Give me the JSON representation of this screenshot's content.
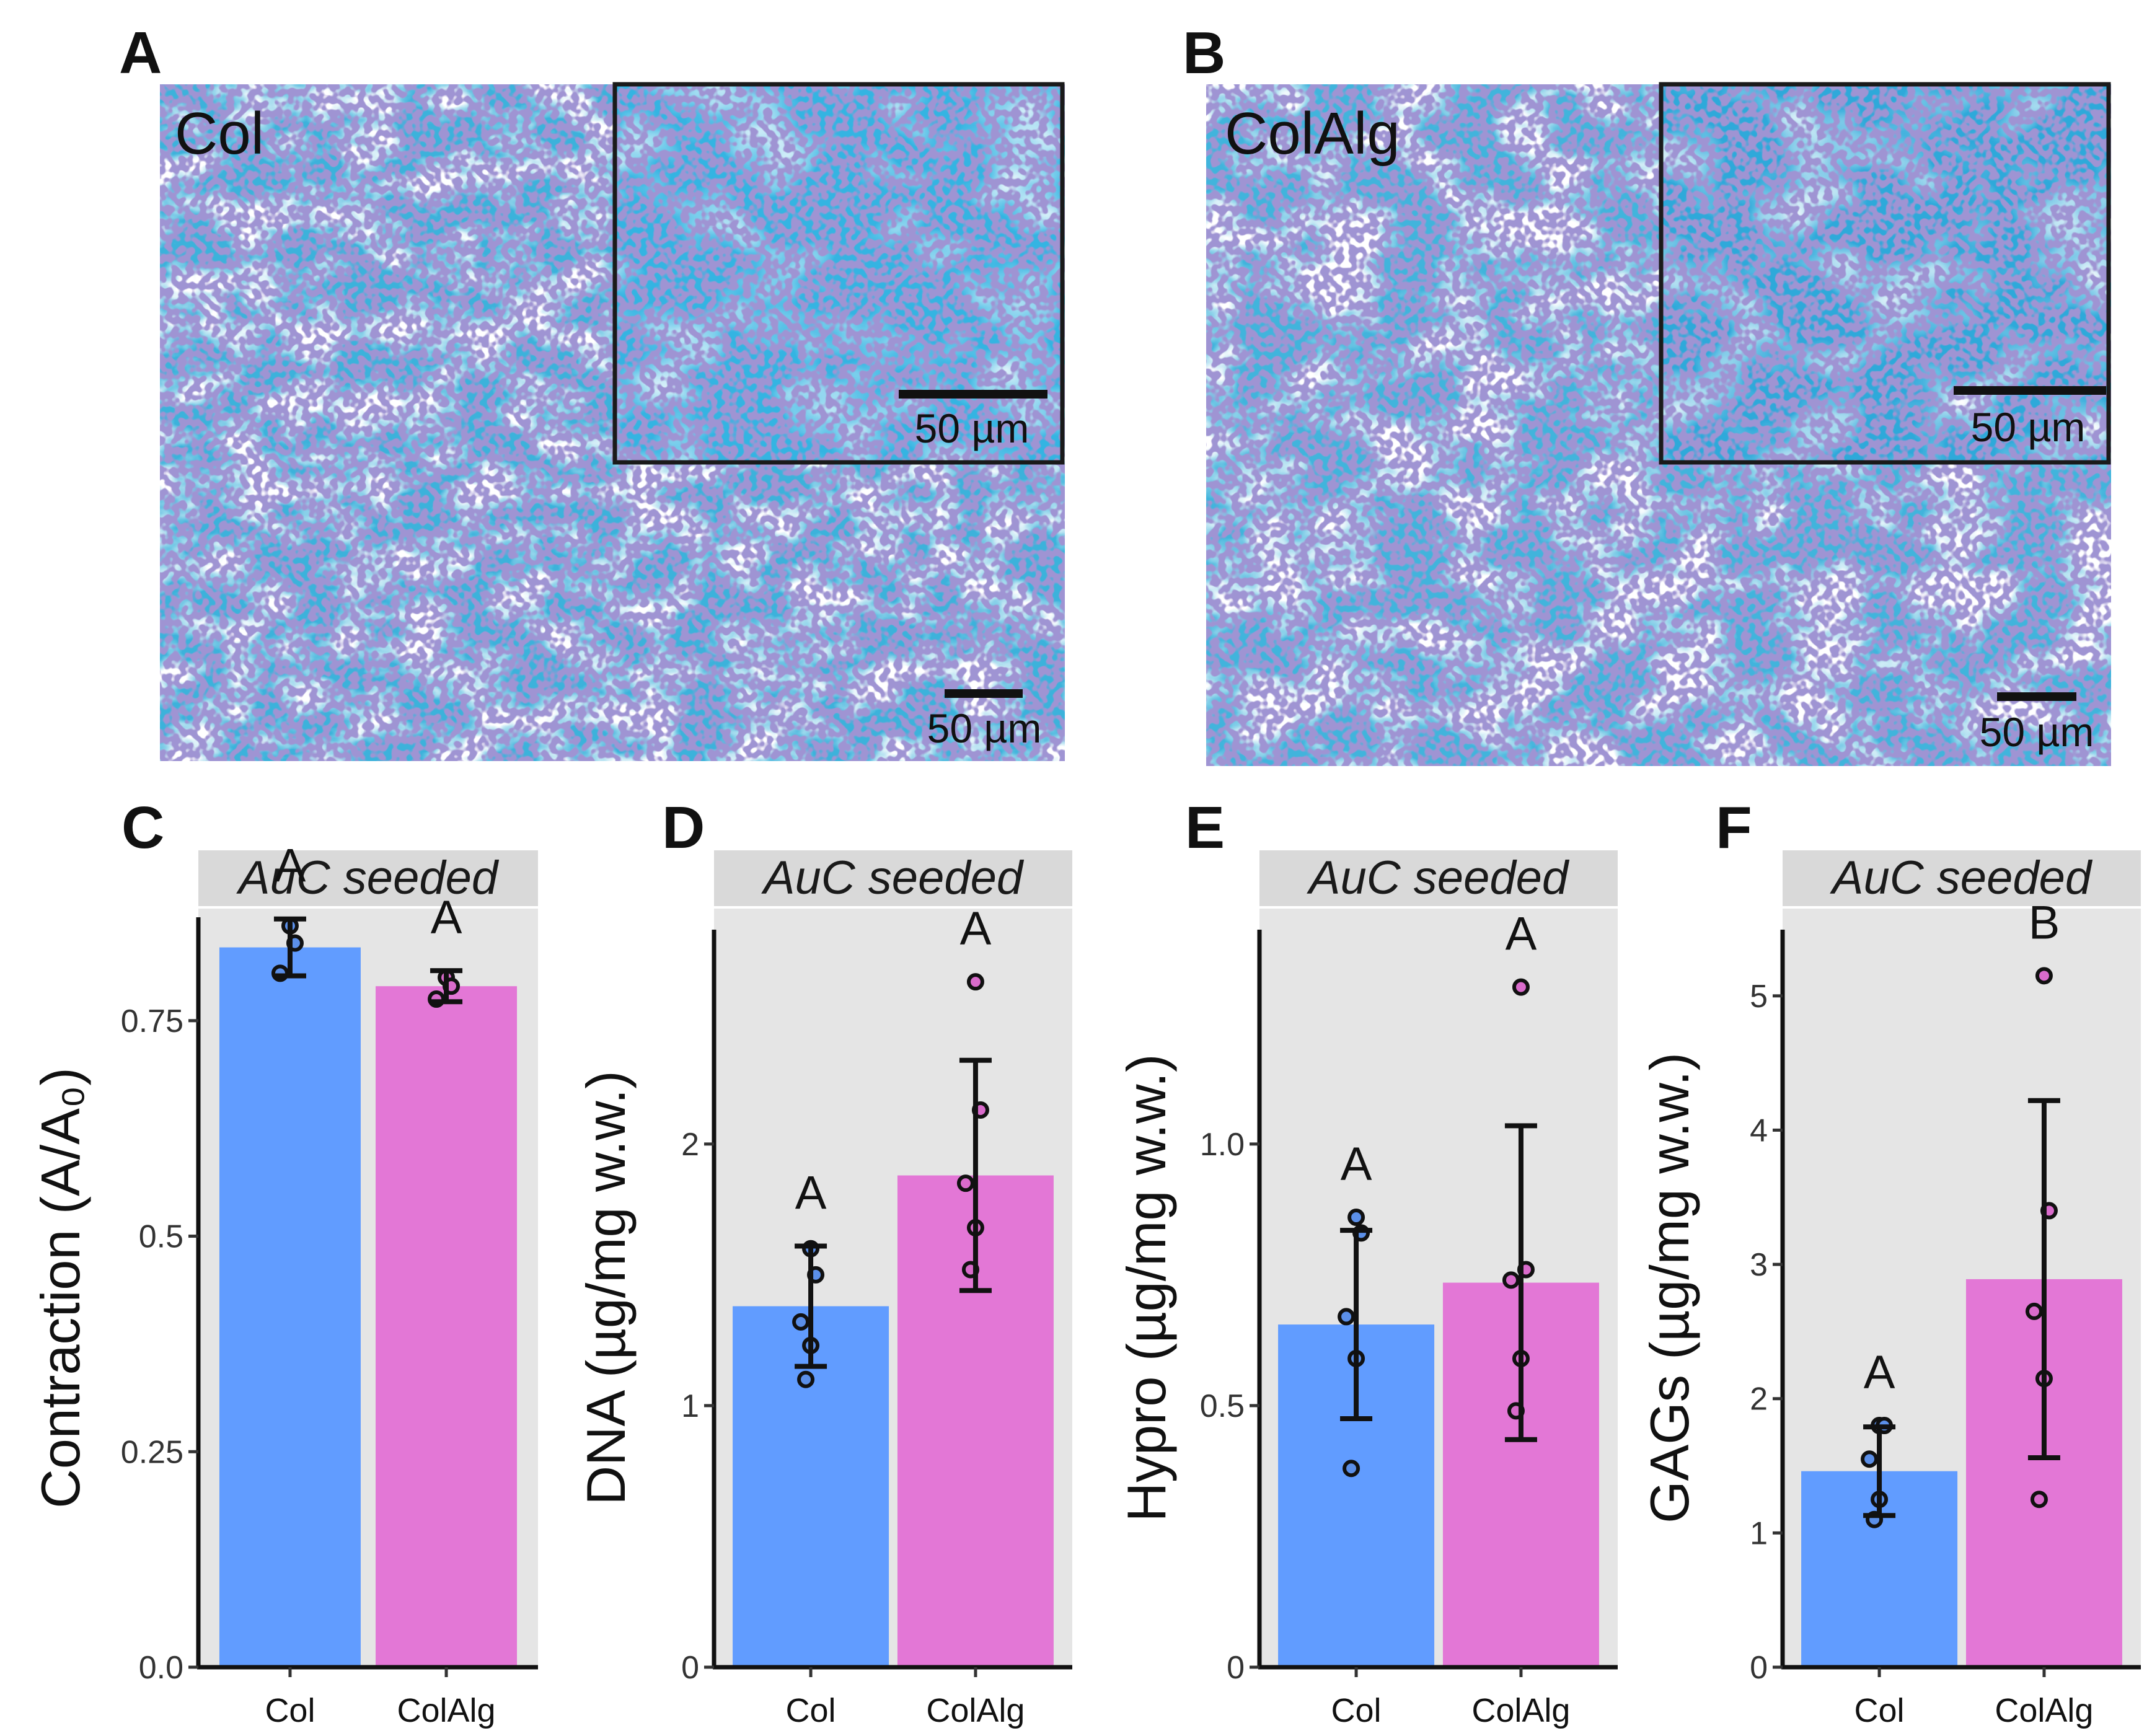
{
  "micrographs": [
    {
      "panel": "A",
      "label": "Col",
      "scale_inset": "50 µm",
      "scale_main": "50 µm"
    },
    {
      "panel": "B",
      "label": "ColAlg",
      "scale_inset": "50 µm",
      "scale_main": "50 µm"
    }
  ],
  "colors": {
    "col_bar": "#619CFF",
    "colalg_bar": "#E377D6",
    "col_point": "#5B8FE8",
    "colalg_point": "#D96BCB",
    "panel_bg": "#E5E5E5",
    "tissue": "#3FB3DC"
  },
  "chart_data": [
    {
      "panel": "C",
      "type": "bar",
      "strip": "AuC seeded",
      "ylabel": "Contraction (A/A₀)",
      "ylim": [
        0,
        0.88
      ],
      "yticks": [
        0,
        0.25,
        0.5,
        0.75
      ],
      "ytick_labels": [
        "0.0",
        "0.25",
        "0.5",
        "0.75"
      ],
      "categories": [
        "Col",
        "ColAlg"
      ],
      "values": [
        0.835,
        0.79
      ],
      "sd": [
        0.033,
        0.018
      ],
      "points": [
        [
          0.86,
          0.84,
          0.805
        ],
        [
          0.8,
          0.79,
          0.775
        ]
      ],
      "sig": [
        "A",
        "A"
      ]
    },
    {
      "panel": "D",
      "type": "bar",
      "strip": "AuC seeded",
      "ylabel": "DNA (µg/mg w.w.)",
      "ylim": [
        0,
        2.9
      ],
      "yticks": [
        0,
        1,
        2
      ],
      "ytick_labels": [
        "0",
        "1",
        "2"
      ],
      "categories": [
        "Col",
        "ColAlg"
      ],
      "values": [
        1.38,
        1.88
      ],
      "sd": [
        0.23,
        0.44
      ],
      "points": [
        [
          1.6,
          1.5,
          1.32,
          1.23,
          1.1
        ],
        [
          2.62,
          2.13,
          1.85,
          1.68,
          1.52
        ]
      ],
      "sig": [
        "A",
        "A"
      ]
    },
    {
      "panel": "E",
      "type": "bar",
      "strip": "AuC seeded",
      "ylabel": "Hypro (µg/mg w.w.)",
      "ylim": [
        0,
        1.45
      ],
      "yticks": [
        0,
        0.5,
        1.0
      ],
      "ytick_labels": [
        "0",
        "0.5",
        "1.0"
      ],
      "categories": [
        "Col",
        "ColAlg"
      ],
      "values": [
        0.655,
        0.735
      ],
      "sd": [
        0.18,
        0.3
      ],
      "points": [
        [
          0.86,
          0.83,
          0.67,
          0.59,
          0.38
        ],
        [
          1.3,
          0.76,
          0.74,
          0.59,
          0.49
        ]
      ],
      "sig": [
        "A",
        "A"
      ]
    },
    {
      "panel": "F",
      "type": "bar",
      "strip": "AuC seeded",
      "ylabel": "GAGs (µg/mg w.w.)",
      "ylim": [
        0,
        5.65
      ],
      "yticks": [
        0,
        1,
        2,
        3,
        4,
        5
      ],
      "ytick_labels": [
        "0",
        "1",
        "2",
        "3",
        "4",
        "5"
      ],
      "categories": [
        "Col",
        "ColAlg"
      ],
      "values": [
        1.46,
        2.89
      ],
      "sd": [
        0.33,
        1.33
      ],
      "points": [
        [
          1.8,
          1.8,
          1.55,
          1.25,
          1.1
        ],
        [
          5.15,
          3.4,
          2.65,
          2.15,
          1.25
        ]
      ],
      "sig": [
        "A",
        "B"
      ]
    }
  ]
}
